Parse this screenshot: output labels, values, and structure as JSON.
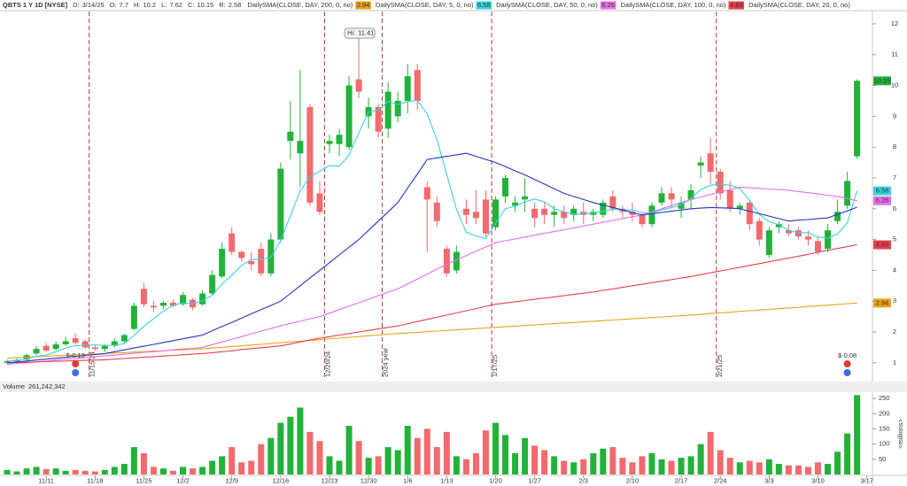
{
  "header": {
    "ticker": "QBTS 1 Y 1D [NYSE]",
    "date_label": "D:",
    "date": "3/14/25",
    "ohlc_labels": [
      "O:",
      "H:",
      "L:",
      "C:"
    ],
    "range_label": "R:",
    "range": 2.58
  },
  "chart_data": {
    "type": "candlestick",
    "categories": [
      null,
      null,
      null,
      null,
      "11/11",
      null,
      null,
      null,
      null,
      "11/18",
      null,
      null,
      null,
      null,
      "11/25",
      null,
      null,
      null,
      "12/2",
      null,
      null,
      null,
      null,
      "12/9",
      null,
      null,
      null,
      null,
      "12/16",
      null,
      null,
      null,
      null,
      "12/23",
      null,
      null,
      null,
      "12/30",
      null,
      null,
      null,
      "1/6",
      null,
      null,
      null,
      "1/13",
      null,
      null,
      null,
      null,
      "1/20",
      null,
      null,
      null,
      "1/27",
      null,
      null,
      null,
      null,
      "2/3",
      null,
      null,
      null,
      null,
      "2/10",
      null,
      null,
      null,
      null,
      "2/17",
      null,
      null,
      null,
      "2/24",
      null,
      null,
      null,
      null,
      "3/3",
      null,
      null,
      null,
      null,
      "3/10",
      null,
      null,
      null,
      null,
      "3/17"
    ],
    "open": [
      1.0,
      1.05,
      1.1,
      1.3,
      1.55,
      1.45,
      1.6,
      1.8,
      1.7,
      1.5,
      1.45,
      1.55,
      1.7,
      2.1,
      3.4,
      2.85,
      2.85,
      2.95,
      2.9,
      3.05,
      2.9,
      3.25,
      3.8,
      5.2,
      4.6,
      4.3,
      4.7,
      3.9,
      5.0,
      8.2,
      7.8,
      9.3,
      6.5,
      8.1,
      8.1,
      8.0,
      10.2,
      9.0,
      9.3,
      8.6,
      9.0,
      9.5,
      10.5,
      6.7,
      6.2,
      4.7,
      4.0,
      6.0,
      5.9,
      6.3,
      5.4,
      6.4,
      6.1,
      6.3,
      6.0,
      6.0,
      5.8,
      5.9,
      5.8,
      5.9,
      5.8,
      5.8,
      6.4,
      6.0,
      5.9,
      5.8,
      5.5,
      6.2,
      6.5,
      6.0,
      6.3,
      7.4,
      7.8,
      7.2,
      6.6,
      6.0,
      6.2,
      5.6,
      4.5,
      5.4,
      5.3,
      5.3,
      5.1,
      4.95,
      4.7,
      5.6,
      6.1,
      7.7,
      null
    ],
    "high": [
      1.1,
      1.15,
      1.3,
      1.55,
      1.65,
      1.7,
      1.85,
      1.95,
      1.75,
      1.6,
      1.6,
      1.8,
      1.95,
      2.95,
      3.6,
      3.0,
      3.0,
      3.05,
      3.3,
      3.1,
      3.35,
      4.0,
      4.9,
      5.4,
      4.65,
      4.6,
      4.9,
      5.2,
      7.5,
      9.5,
      10.5,
      9.4,
      6.9,
      8.4,
      8.6,
      10.3,
      11.41,
      9.6,
      9.4,
      10.1,
      9.8,
      10.7,
      10.7,
      6.9,
      6.4,
      4.8,
      4.8,
      6.3,
      6.6,
      6.6,
      6.4,
      7.1,
      6.4,
      7.0,
      6.2,
      6.2,
      6.1,
      6.1,
      6.1,
      6.2,
      6.0,
      6.3,
      6.6,
      6.1,
      6.2,
      5.9,
      6.2,
      6.7,
      6.7,
      6.4,
      6.8,
      7.7,
      8.3,
      7.3,
      6.9,
      6.2,
      6.3,
      5.7,
      5.4,
      5.6,
      5.5,
      5.4,
      5.3,
      5.1,
      5.5,
      6.3,
      7.2,
      10.2,
      null
    ],
    "low": [
      0.98,
      1.0,
      1.08,
      1.25,
      1.35,
      1.4,
      1.55,
      1.6,
      1.45,
      1.4,
      1.35,
      1.5,
      1.65,
      2.05,
      2.8,
      2.65,
      2.75,
      2.8,
      2.85,
      2.7,
      2.85,
      3.2,
      3.75,
      4.5,
      4.3,
      4.0,
      3.8,
      3.8,
      4.9,
      7.6,
      6.7,
      6.1,
      5.8,
      7.8,
      7.7,
      7.9,
      9.6,
      8.6,
      8.3,
      8.3,
      8.8,
      9.1,
      9.2,
      4.6,
      5.4,
      3.8,
      3.9,
      5.5,
      5.5,
      5.1,
      5.3,
      6.2,
      5.9,
      5.9,
      5.4,
      5.5,
      5.4,
      5.5,
      5.6,
      5.5,
      5.6,
      5.7,
      5.9,
      5.7,
      5.6,
      5.4,
      5.4,
      6.1,
      6.0,
      5.7,
      6.0,
      7.0,
      6.8,
      6.3,
      5.9,
      5.8,
      5.3,
      4.8,
      4.4,
      5.2,
      5.1,
      5.0,
      4.8,
      4.5,
      4.6,
      5.5,
      6.0,
      7.62,
      null
    ],
    "close": [
      1.05,
      1.1,
      1.25,
      1.45,
      1.4,
      1.6,
      1.7,
      1.65,
      1.5,
      1.45,
      1.55,
      1.7,
      1.9,
      2.85,
      2.9,
      2.8,
      2.95,
      2.85,
      3.2,
      2.8,
      3.25,
      3.85,
      4.7,
      4.6,
      4.4,
      4.2,
      3.9,
      5.0,
      7.3,
      8.5,
      8.2,
      6.2,
      5.9,
      8.2,
      8.4,
      10.0,
      9.8,
      9.3,
      8.5,
      9.8,
      9.5,
      10.3,
      9.5,
      6.3,
      5.6,
      3.9,
      4.6,
      5.8,
      5.7,
      5.2,
      6.3,
      7.0,
      6.2,
      6.4,
      5.7,
      5.8,
      5.9,
      5.7,
      6.0,
      5.8,
      5.9,
      6.2,
      6.0,
      5.9,
      5.8,
      5.5,
      6.1,
      6.5,
      6.3,
      6.2,
      6.6,
      7.5,
      7.2,
      6.5,
      6.0,
      6.1,
      5.5,
      5.0,
      5.3,
      5.5,
      5.2,
      5.1,
      5.0,
      4.6,
      5.3,
      5.9,
      6.9,
      10.15,
      null
    ],
    "up_color": "#22b23a",
    "down_color": "#f26a6e",
    "ylim": [
      0.45,
      12.4
    ],
    "yticks": [
      1,
      2,
      3,
      4,
      5,
      6,
      7,
      8,
      9,
      10,
      11,
      12
    ],
    "series": [
      {
        "name": "DailySMA(CLOSE, DAY, 200, 0, no)",
        "color": "#e8a317",
        "values": [
          1.15,
          1.17,
          1.18,
          1.2,
          1.21,
          1.23,
          1.24,
          1.26,
          1.27,
          1.29,
          1.3,
          1.32,
          1.33,
          1.35,
          1.36,
          1.38,
          1.39,
          1.41,
          1.42,
          1.44,
          1.45,
          1.48,
          1.5,
          1.53,
          1.55,
          1.58,
          1.6,
          1.63,
          1.65,
          1.68,
          1.7,
          1.73,
          1.75,
          1.78,
          1.8,
          1.83,
          1.85,
          1.88,
          1.9,
          1.93,
          1.95,
          1.97,
          1.99,
          2.01,
          2.03,
          2.05,
          2.07,
          2.09,
          2.11,
          2.13,
          2.15,
          2.17,
          2.19,
          2.21,
          2.23,
          2.25,
          2.27,
          2.29,
          2.31,
          2.33,
          2.35,
          2.37,
          2.39,
          2.41,
          2.43,
          2.45,
          2.47,
          2.49,
          2.51,
          2.53,
          2.55,
          2.57,
          2.6,
          2.62,
          2.64,
          2.67,
          2.69,
          2.71,
          2.73,
          2.76,
          2.78,
          2.8,
          2.83,
          2.85,
          2.87,
          2.89,
          2.92,
          2.94,
          null
        ]
      },
      {
        "name": "DailySMA(CLOSE, DAY, 5, 0, no)",
        "color": "#35d3e0",
        "values": [
          1.05,
          1.08,
          1.13,
          1.21,
          1.25,
          1.36,
          1.48,
          1.56,
          1.57,
          1.58,
          1.57,
          1.57,
          1.62,
          1.89,
          2.18,
          2.43,
          2.68,
          2.87,
          2.94,
          2.92,
          3.01,
          3.19,
          3.56,
          3.84,
          4.16,
          4.35,
          4.36,
          4.42,
          4.96,
          5.78,
          6.58,
          7.04,
          7.22,
          7.4,
          7.38,
          7.74,
          8.46,
          9.14,
          9.2,
          9.48,
          9.38,
          9.48,
          9.52,
          9.08,
          8.24,
          7.12,
          5.98,
          5.24,
          5.12,
          5.04,
          5.52,
          6.0,
          6.08,
          6.22,
          6.32,
          6.22,
          6.0,
          5.9,
          5.82,
          5.84,
          5.86,
          5.92,
          5.98,
          5.96,
          5.96,
          5.88,
          5.86,
          5.96,
          6.04,
          6.12,
          6.34,
          6.62,
          6.76,
          6.8,
          6.76,
          6.66,
          6.26,
          5.82,
          5.58,
          5.48,
          5.3,
          5.22,
          5.22,
          5.08,
          5.04,
          5.18,
          5.54,
          6.58,
          null
        ]
      },
      {
        "name": "DailySMA(CLOSE, DAY, 50, 0, no)",
        "color": "#e46ee8",
        "values": [
          0.95,
          0.98,
          1.0,
          1.03,
          1.06,
          1.09,
          1.12,
          1.14,
          1.17,
          1.2,
          1.23,
          1.25,
          1.28,
          1.31,
          1.34,
          1.36,
          1.39,
          1.42,
          1.45,
          1.47,
          1.5,
          1.59,
          1.68,
          1.76,
          1.85,
          1.94,
          2.03,
          2.11,
          2.2,
          2.28,
          2.35,
          2.43,
          2.5,
          2.61,
          2.73,
          2.84,
          2.95,
          3.06,
          3.18,
          3.29,
          3.4,
          3.56,
          3.72,
          3.88,
          4.04,
          4.2,
          4.34,
          4.48,
          4.62,
          4.76,
          4.9,
          4.96,
          5.02,
          5.08,
          5.14,
          5.2,
          5.26,
          5.32,
          5.38,
          5.44,
          5.5,
          5.56,
          5.62,
          5.68,
          5.74,
          5.8,
          5.9,
          6.0,
          6.1,
          6.2,
          6.3,
          6.38,
          6.46,
          6.54,
          6.62,
          6.7,
          6.68,
          6.66,
          6.64,
          6.62,
          6.6,
          6.56,
          6.52,
          6.48,
          6.44,
          6.4,
          6.33,
          6.26,
          null
        ]
      },
      {
        "name": "DailySMA(CLOSE, DAY, 100, 0, no)",
        "color": "#e8404c",
        "values": [
          1.0,
          1.01,
          1.02,
          1.03,
          1.04,
          1.05,
          1.06,
          1.07,
          1.08,
          1.09,
          1.1,
          1.12,
          1.14,
          1.16,
          1.18,
          1.2,
          1.22,
          1.24,
          1.26,
          1.28,
          1.3,
          1.33,
          1.36,
          1.39,
          1.43,
          1.46,
          1.49,
          1.52,
          1.55,
          1.61,
          1.68,
          1.74,
          1.8,
          1.85,
          1.9,
          1.95,
          2.0,
          2.05,
          2.1,
          2.15,
          2.2,
          2.27,
          2.34,
          2.41,
          2.48,
          2.55,
          2.62,
          2.69,
          2.76,
          2.83,
          2.9,
          2.94,
          2.98,
          3.02,
          3.06,
          3.1,
          3.14,
          3.18,
          3.22,
          3.26,
          3.3,
          3.35,
          3.4,
          3.45,
          3.5,
          3.55,
          3.6,
          3.65,
          3.7,
          3.75,
          3.8,
          3.86,
          3.92,
          3.98,
          4.04,
          4.1,
          4.16,
          4.22,
          4.28,
          4.34,
          4.4,
          4.46,
          4.52,
          4.59,
          4.65,
          4.71,
          4.77,
          4.83,
          null
        ]
      },
      {
        "name": "DailySMA(CLOSE, DAY, 20, 0, no)",
        "color": "#2233c4",
        "values": [
          1.0,
          1.03,
          1.06,
          1.09,
          1.12,
          1.15,
          1.18,
          1.21,
          1.24,
          1.27,
          1.3,
          1.36,
          1.42,
          1.48,
          1.54,
          1.6,
          1.66,
          1.72,
          1.78,
          1.84,
          1.9,
          2.04,
          2.18,
          2.31,
          2.45,
          2.59,
          2.73,
          2.86,
          3.0,
          3.25,
          3.5,
          3.75,
          4.0,
          4.25,
          4.5,
          4.75,
          5.0,
          5.3,
          5.6,
          5.9,
          6.2,
          6.67,
          7.13,
          7.6,
          7.65,
          7.7,
          7.75,
          7.8,
          7.7,
          7.6,
          7.5,
          7.37,
          7.23,
          7.1,
          6.95,
          6.8,
          6.65,
          6.5,
          6.4,
          6.3,
          6.2,
          6.12,
          6.04,
          5.96,
          5.88,
          5.8,
          5.84,
          5.88,
          5.92,
          5.96,
          6.0,
          6.02,
          6.04,
          6.03,
          6.02,
          6.0,
          5.92,
          5.84,
          5.76,
          5.68,
          5.6,
          5.63,
          5.65,
          5.68,
          5.7,
          5.82,
          5.93,
          6.05,
          null
        ]
      }
    ],
    "high_label": "Hi:",
    "event_lines": [
      "11/15/24",
      "12/20/24",
      "2024 year",
      "1/17/25",
      "2/21/25"
    ],
    "earnings": [
      "$-0.13",
      "$-0.08"
    ],
    "volume": {
      "title": "Volume",
      "readout": "261,242,342",
      "unit_label": "<millions>",
      "values": [
        15,
        10,
        20,
        25,
        18,
        20,
        12,
        15,
        12,
        10,
        15,
        25,
        35,
        90,
        70,
        25,
        20,
        12,
        25,
        20,
        25,
        45,
        60,
        90,
        40,
        45,
        100,
        120,
        170,
        190,
        220,
        140,
        110,
        60,
        45,
        160,
        110,
        55,
        60,
        90,
        80,
        160,
        120,
        150,
        90,
        140,
        60,
        50,
        70,
        145,
        170,
        130,
        70,
        120,
        95,
        80,
        60,
        45,
        40,
        50,
        70,
        85,
        90,
        55,
        40,
        60,
        70,
        50,
        45,
        55,
        60,
        100,
        140,
        80,
        55,
        40,
        45,
        40,
        50,
        35,
        30,
        30,
        25,
        40,
        35,
        75,
        135,
        261.242342,
        null
      ],
      "ylim": [
        0,
        265
      ],
      "yticks": [
        50,
        100,
        150,
        200,
        250
      ]
    }
  }
}
